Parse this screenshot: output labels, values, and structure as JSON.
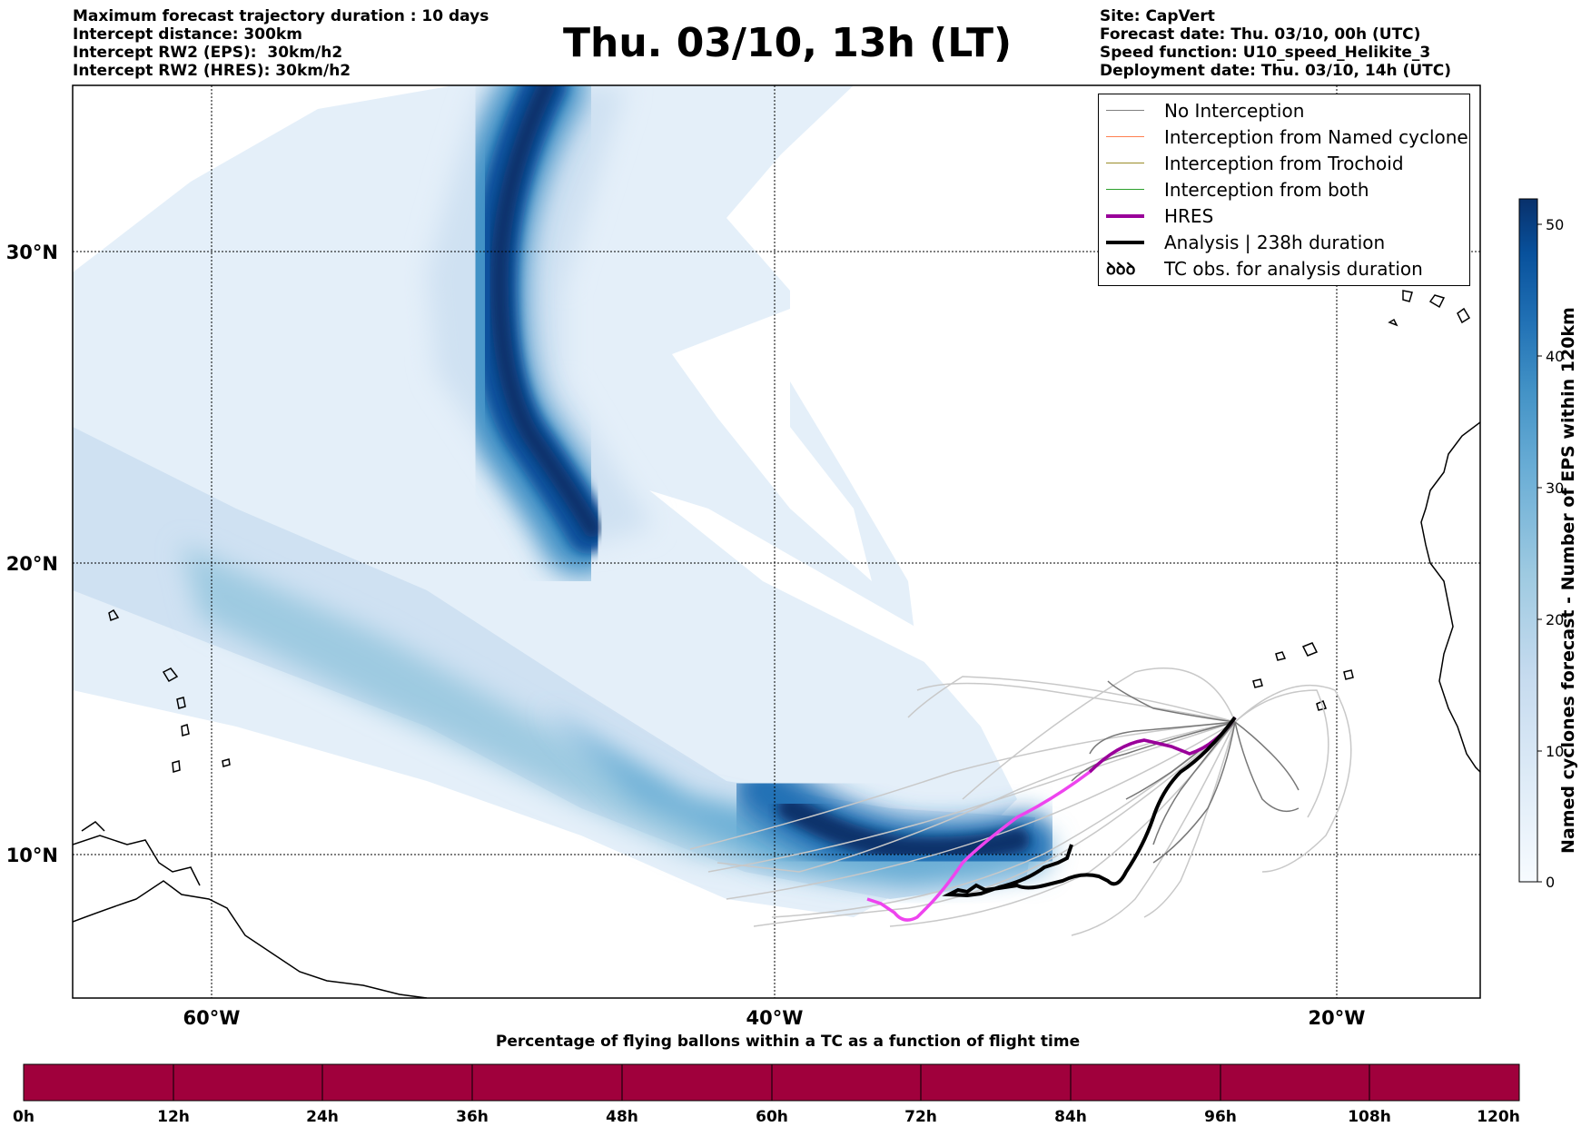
{
  "header_left": [
    "Maximum forecast trajectory duration : 10 days",
    "Intercept distance: 300km",
    "Intercept RW2 (EPS):  30km/h2",
    "Intercept RW2 (HRES): 30km/h2"
  ],
  "title": "Thu. 03/10, 13h (LT)",
  "header_right": [
    "Site: CapVert",
    "Forecast date: Thu. 03/10, 00h (UTC)",
    "Speed function: U10_speed_Helikite_3",
    "Deployment date: Thu. 03/10, 14h (UTC)"
  ],
  "map": {
    "lon_ticks": [
      "60°W",
      "40°W",
      "20°W"
    ],
    "lat_ticks": [
      "30°N",
      "20°N",
      "10°N"
    ]
  },
  "legend": [
    {
      "label": "No Interception",
      "color": "#808080"
    },
    {
      "label": "Interception from Named cyclone",
      "color": "#ff7f50"
    },
    {
      "label": "Interception from Trochoid",
      "color": "#9a8c2a"
    },
    {
      "label": "Interception from both",
      "color": "#2ca02c"
    },
    {
      "label": "HRES",
      "color": "#990099"
    },
    {
      "label": "Analysis | 238h duration",
      "color": "#000000"
    },
    {
      "label": "TC obs. for analysis duration",
      "symbol": "ꝺꝺꝺ"
    }
  ],
  "colorbar": {
    "label": "Named cyclones forecast - Number of EPS within 120km",
    "ticks": [
      "0",
      "10",
      "20",
      "30",
      "40",
      "50"
    ],
    "colors": [
      "#f7fbff",
      "#deebf7",
      "#c6dbef",
      "#9ecae1",
      "#6baed6",
      "#4292c6",
      "#2171b5",
      "#08519c",
      "#08306b"
    ]
  },
  "bottom_bar": {
    "title": "Percentage of flying ballons within a TC as a function of flight time",
    "ticks": [
      "0h",
      "12h",
      "24h",
      "36h",
      "48h",
      "60h",
      "72h",
      "84h",
      "96h",
      "108h",
      "120h"
    ],
    "color": "#a0003c"
  }
}
